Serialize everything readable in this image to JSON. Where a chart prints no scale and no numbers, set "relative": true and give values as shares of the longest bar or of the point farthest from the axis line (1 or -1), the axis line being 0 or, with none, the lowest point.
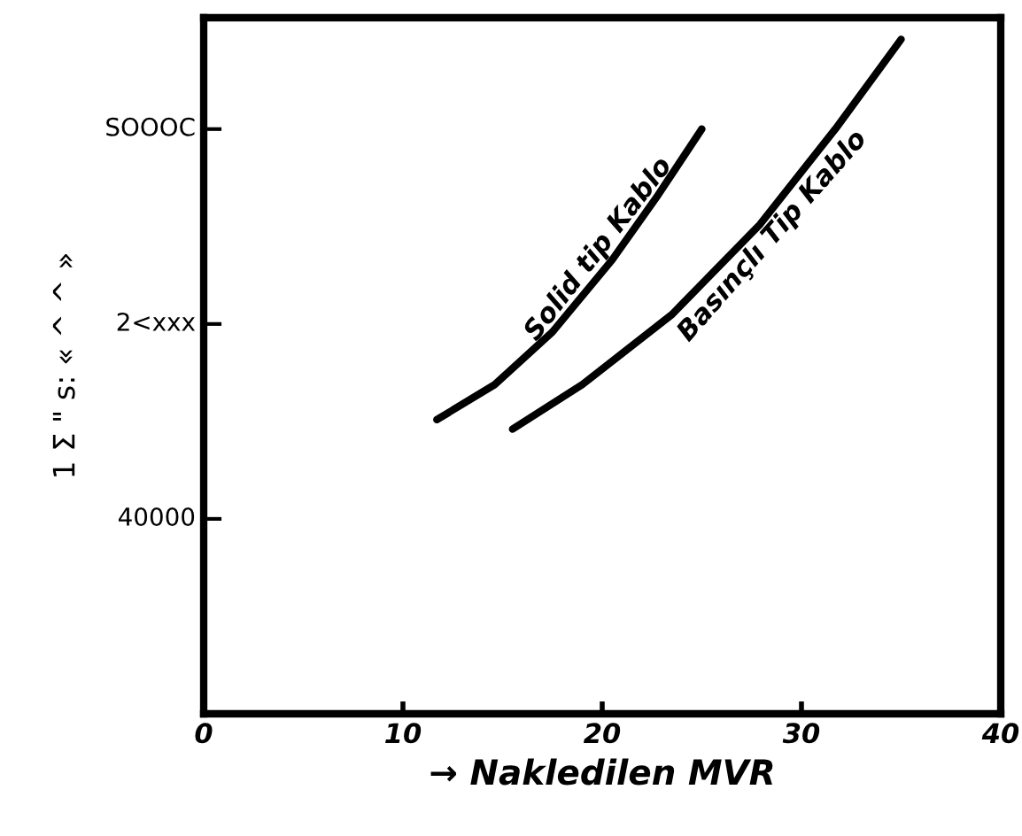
{
  "chart_data": {
    "type": "line",
    "xlabel": "→ Nakledilen MVR",
    "ylabel": "1 Σ \" s: « ^ ^ »",
    "xlim": [
      0,
      40
    ],
    "xticks": [
      0,
      10,
      20,
      30,
      40
    ],
    "relative": true,
    "annotations": [
      "40000",
      "2<xxx",
      "SOOOC"
    ],
    "grid": false,
    "legend": false,
    "series": [
      {
        "name": "Solid tip Kablo",
        "color": "#000000",
        "x": [
          11.7,
          14.6,
          17.5,
          20.5,
          22.8,
          25.0
        ],
        "values": [
          0.436,
          0.488,
          0.566,
          0.673,
          0.769,
          0.867
        ]
      },
      {
        "name": "Basınçlı Tip Kablo",
        "color": "#000000",
        "x": [
          15.5,
          19.0,
          23.5,
          27.9,
          31.7,
          35.0
        ],
        "values": [
          0.422,
          0.488,
          0.592,
          0.725,
          0.867,
          1
        ]
      }
    ]
  }
}
